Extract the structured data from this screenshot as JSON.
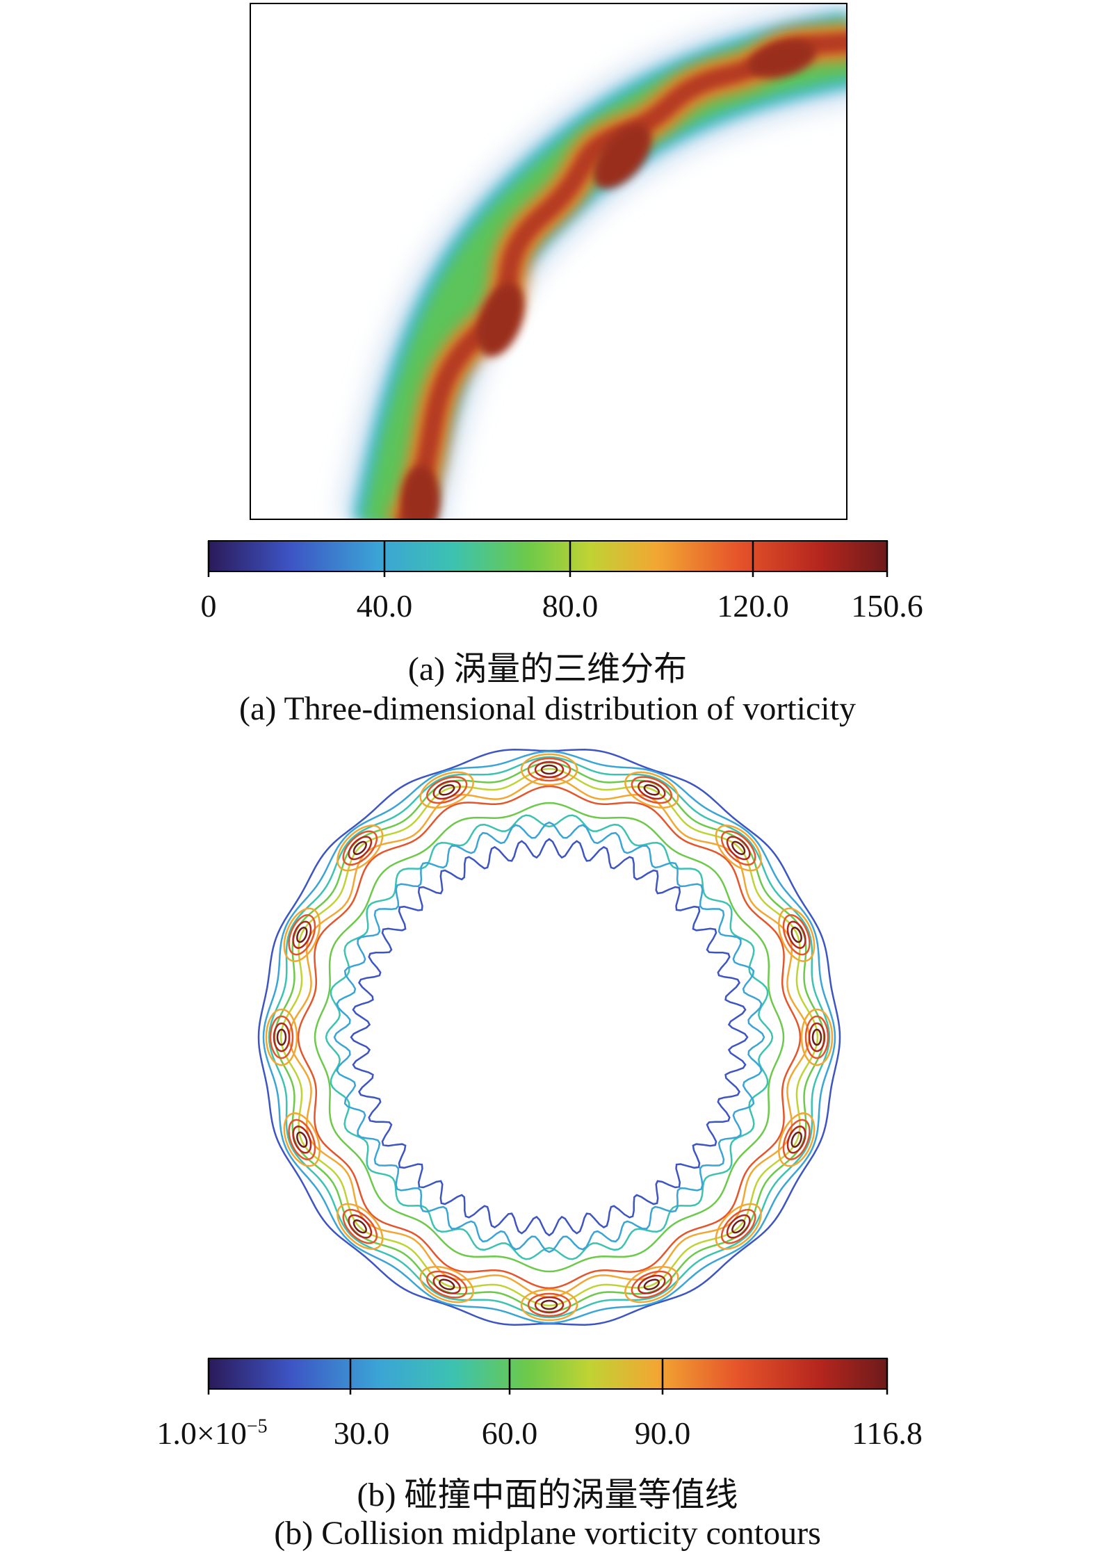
{
  "panel_a": {
    "colorbar": {
      "ticks": [
        "0",
        "40.0",
        "80.0",
        "120.0",
        "150.6"
      ],
      "min": 0,
      "max": 150.6
    },
    "caption_cn": "(a) 涡量的三维分布",
    "caption_en": "(a) Three-dimensional distribution of vorticity"
  },
  "panel_b": {
    "colorbar": {
      "ticks": [
        "1.0×10",
        "30.0",
        "60.0",
        "90.0",
        "116.8"
      ],
      "first_exponent": "−5",
      "min": 1e-05,
      "max": 116.8
    },
    "caption_cn": "(b) 碰撞中面的涡量等值线",
    "caption_en": "(b) Collision midplane vorticity contours"
  },
  "colormap": [
    "#2b1a5a",
    "#3d54c4",
    "#3ba4d6",
    "#3cc2b1",
    "#6cc94a",
    "#bfd334",
    "#f2a733",
    "#e5542a",
    "#b5261e",
    "#6d1b1b"
  ]
}
